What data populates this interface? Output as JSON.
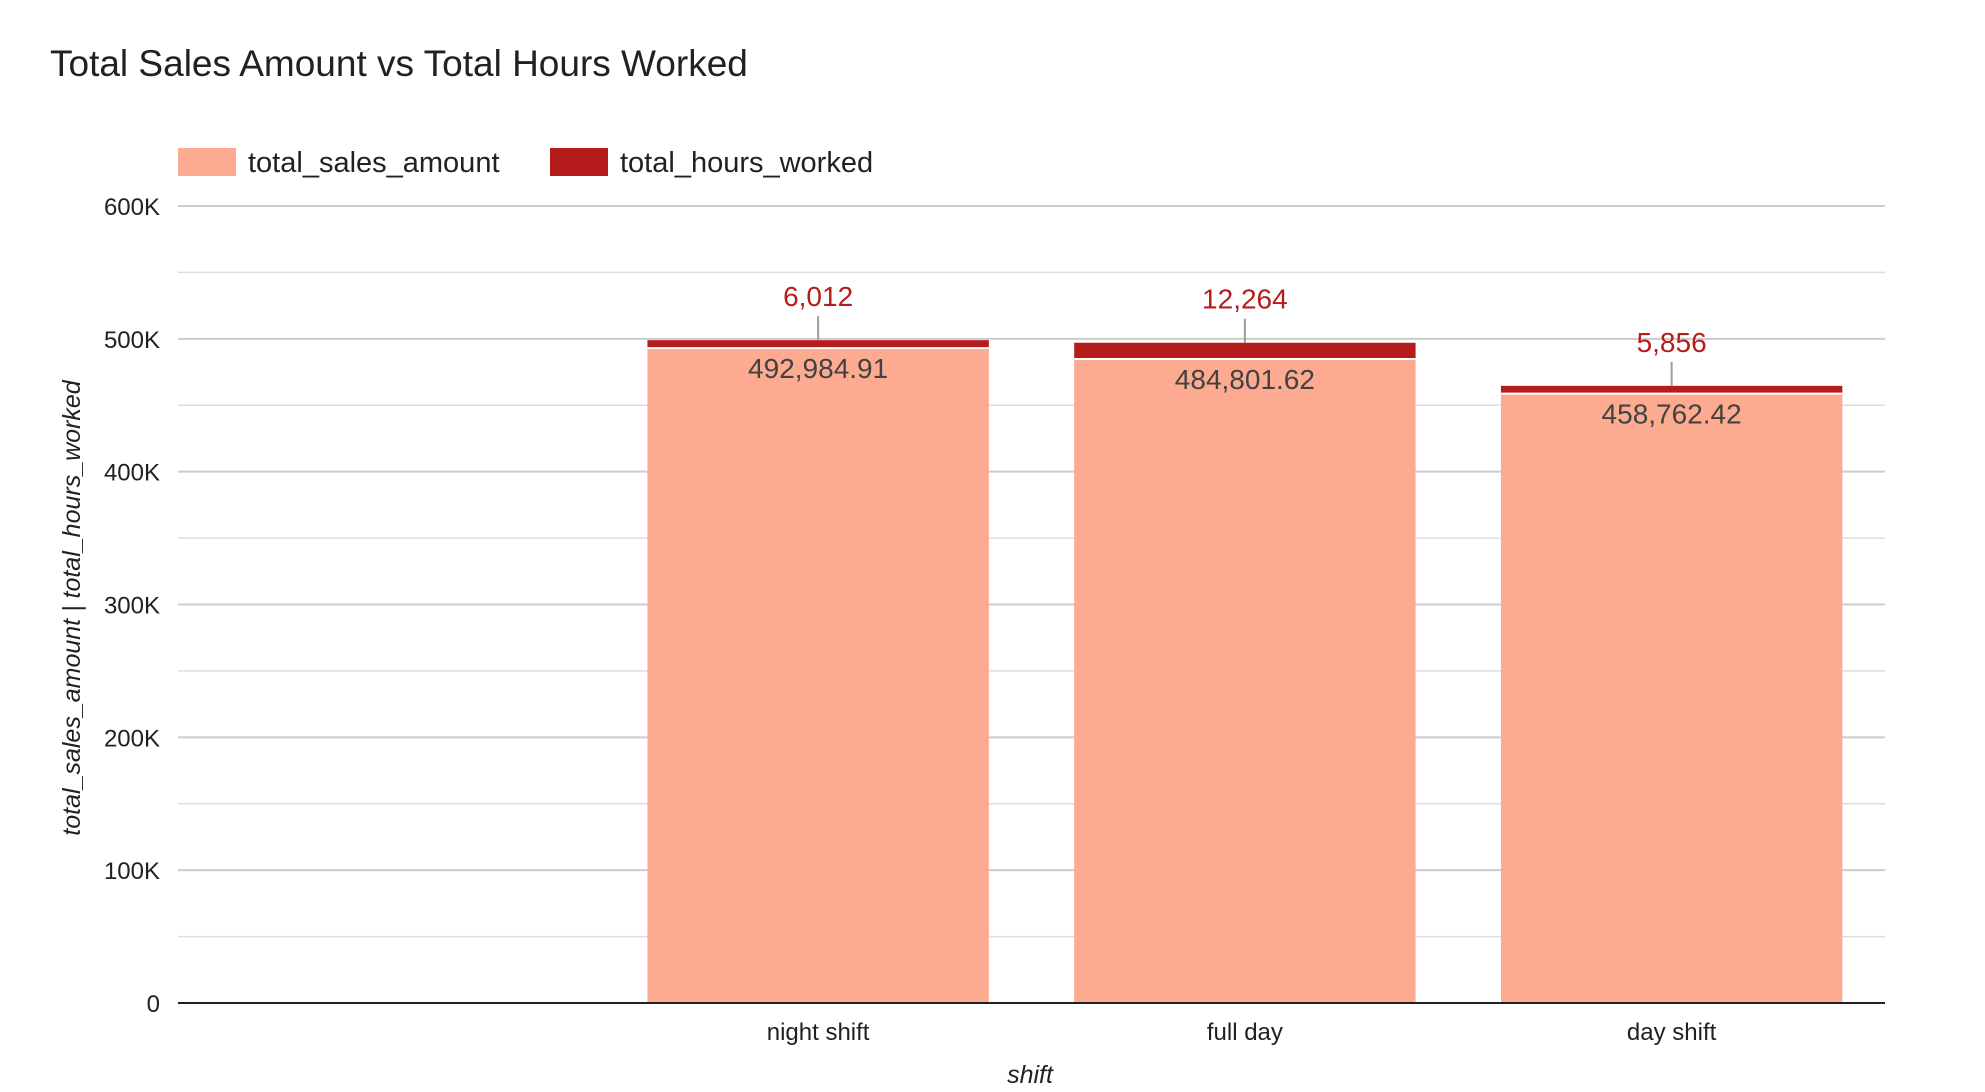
{
  "chart_data": {
    "type": "bar",
    "stacked": true,
    "title": "Total Sales Amount vs Total Hours Worked",
    "xlabel": "shift",
    "ylabel": "total_sales_amount | total_hours_worked",
    "categories": [
      "",
      "night shift",
      "full day",
      "day shift"
    ],
    "series": [
      {
        "name": "total_sales_amount",
        "color": "#fcab91",
        "label_color": "#424242",
        "values": [
          null,
          492984.91,
          484801.62,
          458762.42
        ],
        "labels": [
          "",
          "492,984.91",
          "484,801.62",
          "458,762.42"
        ]
      },
      {
        "name": "total_hours_worked",
        "color": "#b71c1c",
        "label_color": "#b71c1c",
        "values": [
          null,
          6012,
          12264,
          5856
        ],
        "labels": [
          "",
          "6,012",
          "12,264",
          "5,856"
        ]
      }
    ],
    "ylim": [
      0,
      600000
    ],
    "yticks": [
      0,
      100000,
      200000,
      300000,
      400000,
      500000,
      600000
    ],
    "ytick_labels": [
      "0",
      "100K",
      "200K",
      "300K",
      "400K",
      "500K",
      "600K"
    ],
    "minor_gridlines": true,
    "grid": true,
    "legend": "top-left"
  }
}
